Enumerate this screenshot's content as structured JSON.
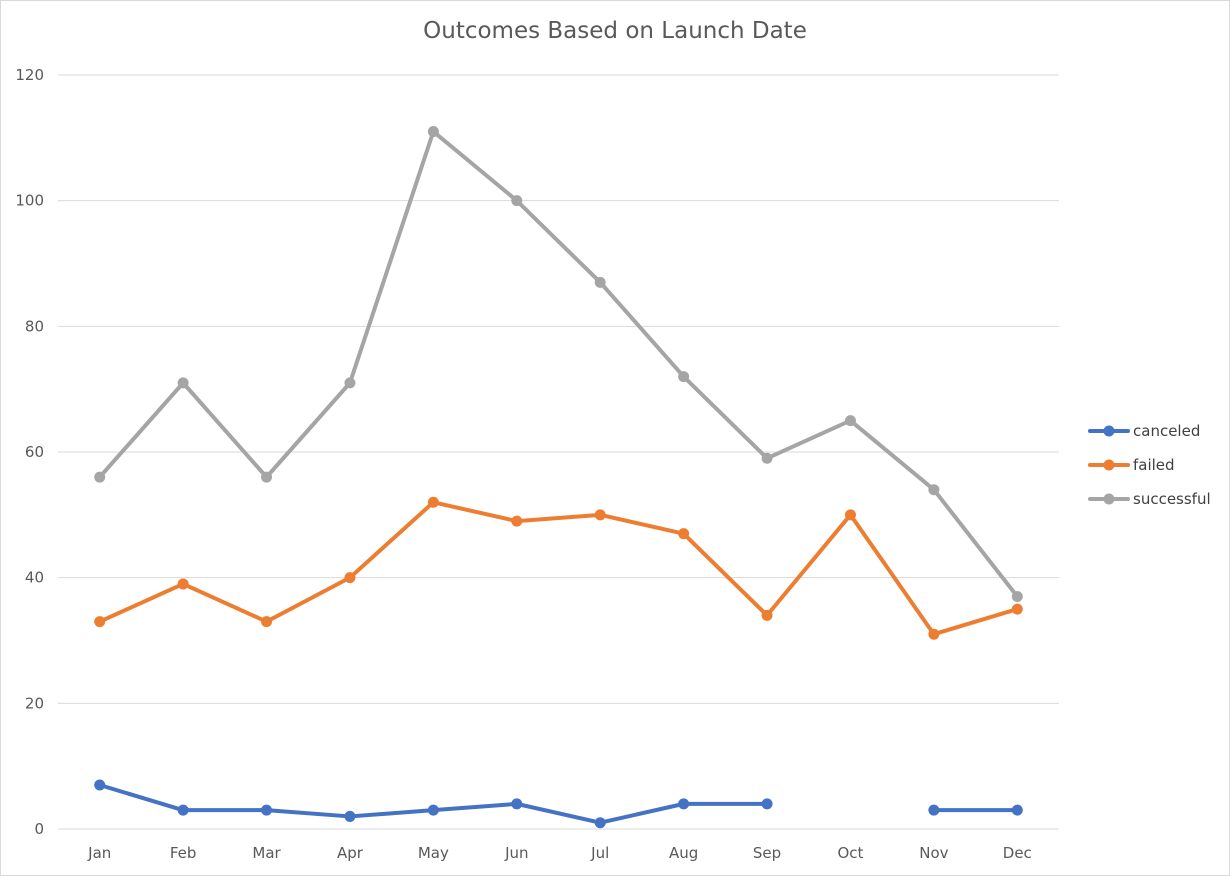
{
  "chart_data": {
    "type": "line",
    "title": "Outcomes Based on Launch Date",
    "xlabel": "",
    "ylabel": "",
    "categories": [
      "Jan",
      "Feb",
      "Mar",
      "Apr",
      "May",
      "Jun",
      "Jul",
      "Aug",
      "Sep",
      "Oct",
      "Nov",
      "Dec"
    ],
    "ylim": [
      0,
      120
    ],
    "yticks": [
      0,
      20,
      40,
      60,
      80,
      100,
      120
    ],
    "grid": true,
    "legend": "right",
    "series": [
      {
        "name": "canceled",
        "color": "#4472c4",
        "values": [
          7,
          3,
          3,
          2,
          3,
          4,
          1,
          4,
          4,
          null,
          3,
          3
        ]
      },
      {
        "name": "failed",
        "color": "#ed7d31",
        "values": [
          33,
          39,
          33,
          40,
          52,
          49,
          50,
          47,
          34,
          50,
          31,
          35
        ]
      },
      {
        "name": "successful",
        "color": "#a5a5a5",
        "values": [
          56,
          71,
          56,
          71,
          111,
          100,
          87,
          72,
          59,
          65,
          54,
          37
        ]
      }
    ]
  }
}
